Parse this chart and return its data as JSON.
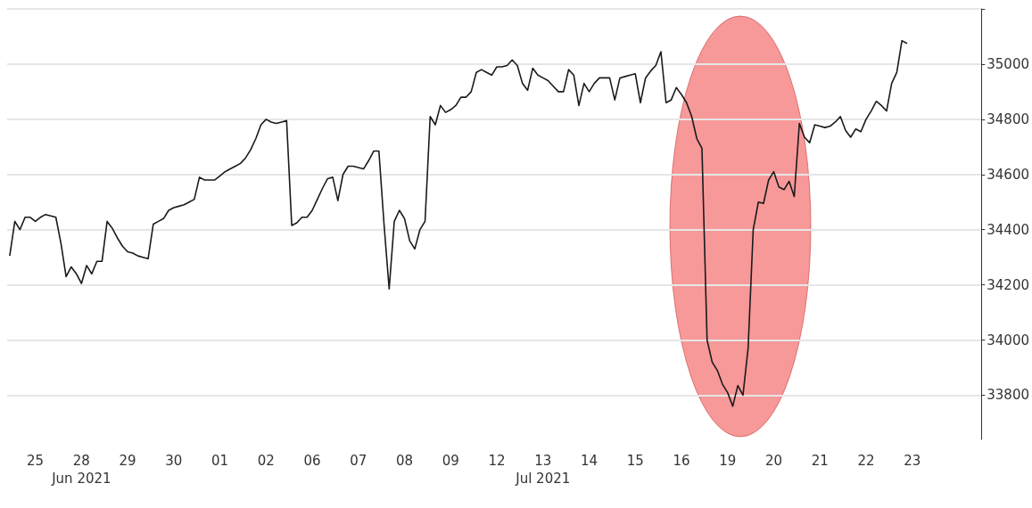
{
  "chart_data": {
    "type": "line",
    "color": "#1a1a1a",
    "categories": [
      null,
      null,
      null,
      null,
      null,
      "25",
      null,
      null,
      null,
      null,
      null,
      null,
      null,
      null,
      "28\nJun 2021",
      null,
      null,
      null,
      null,
      null,
      null,
      null,
      null,
      "29",
      null,
      null,
      null,
      null,
      null,
      null,
      null,
      null,
      "30",
      null,
      null,
      null,
      null,
      null,
      null,
      null,
      null,
      "01",
      null,
      null,
      null,
      null,
      null,
      null,
      null,
      null,
      "02",
      null,
      null,
      null,
      null,
      null,
      null,
      null,
      null,
      "06",
      null,
      null,
      null,
      null,
      null,
      null,
      null,
      null,
      "07",
      null,
      null,
      null,
      null,
      null,
      null,
      null,
      null,
      "08",
      null,
      null,
      null,
      null,
      null,
      null,
      null,
      null,
      "09",
      null,
      null,
      null,
      null,
      null,
      null,
      null,
      null,
      "12",
      null,
      null,
      null,
      null,
      null,
      null,
      null,
      null,
      "13\nJul 2021",
      null,
      null,
      null,
      null,
      null,
      null,
      null,
      null,
      "14",
      null,
      null,
      null,
      null,
      null,
      null,
      null,
      null,
      "15",
      null,
      null,
      null,
      null,
      null,
      null,
      null,
      null,
      "16",
      null,
      null,
      null,
      null,
      null,
      null,
      null,
      null,
      "19",
      null,
      null,
      null,
      null,
      null,
      null,
      null,
      null,
      "20",
      null,
      null,
      null,
      null,
      null,
      null,
      null,
      null,
      "21",
      null,
      null,
      null,
      null,
      null,
      null,
      null,
      null,
      "22",
      null,
      null,
      null,
      null,
      null,
      null,
      null,
      null,
      "23",
      null,
      null,
      null,
      null,
      null,
      null,
      null,
      null,
      null,
      null,
      null,
      null,
      null
    ],
    "values": [
      34305,
      34430,
      34400,
      34445,
      34445,
      34430,
      34445,
      34455,
      34450,
      34445,
      34350,
      34230,
      34265,
      34240,
      34205,
      34270,
      34240,
      34285,
      34285,
      34430,
      34405,
      34370,
      34340,
      34320,
      34315,
      34305,
      34300,
      34295,
      34420,
      34430,
      34440,
      34470,
      34480,
      34485,
      34490,
      34500,
      34510,
      34590,
      34580,
      34580,
      34580,
      34595,
      34610,
      34620,
      34630,
      34640,
      34660,
      34690,
      34730,
      34780,
      34800,
      34790,
      34785,
      34790,
      34795,
      34415,
      34425,
      34445,
      34445,
      34470,
      34510,
      34550,
      34585,
      34590,
      34505,
      34600,
      34630,
      34630,
      34625,
      34620,
      34650,
      34685,
      34685,
      34420,
      34185,
      34430,
      34470,
      34440,
      34360,
      34330,
      34400,
      34430,
      34810,
      34780,
      34850,
      34825,
      34835,
      34850,
      34880,
      34880,
      34900,
      34970,
      34980,
      34970,
      34960,
      34990,
      34990,
      34995,
      35015,
      34995,
      34930,
      34905,
      34985,
      34960,
      34950,
      34940,
      34920,
      34900,
      34900,
      34980,
      34960,
      34850,
      34930,
      34900,
      34930,
      34950,
      34950,
      34950,
      34870,
      34950,
      34955,
      34960,
      34965,
      34860,
      34950,
      34975,
      34995,
      35045,
      34860,
      34870,
      34915,
      34890,
      34860,
      34810,
      34730,
      34695,
      34000,
      33920,
      33890,
      33840,
      33810,
      33760,
      33835,
      33800,
      33970,
      34400,
      34500,
      34495,
      34580,
      34610,
      34555,
      34545,
      34575,
      34520,
      34785,
      34735,
      34715,
      34780,
      34775,
      34770,
      34775,
      34790,
      34810,
      34760,
      34735,
      34765,
      34755,
      34800,
      34830,
      34865,
      34850,
      34830,
      34930,
      34970,
      35085,
      35075,
      null,
      null,
      null,
      null,
      null,
      null,
      null,
      null,
      null,
      null,
      null,
      null,
      null,
      null
    ],
    "ylim": [
      33640,
      35200
    ],
    "yticks": [
      33800,
      34000,
      34200,
      34400,
      34600,
      34800,
      35000,
      {
        "value": 35200,
        "label": null
      }
    ],
    "grid": "y"
  }
}
